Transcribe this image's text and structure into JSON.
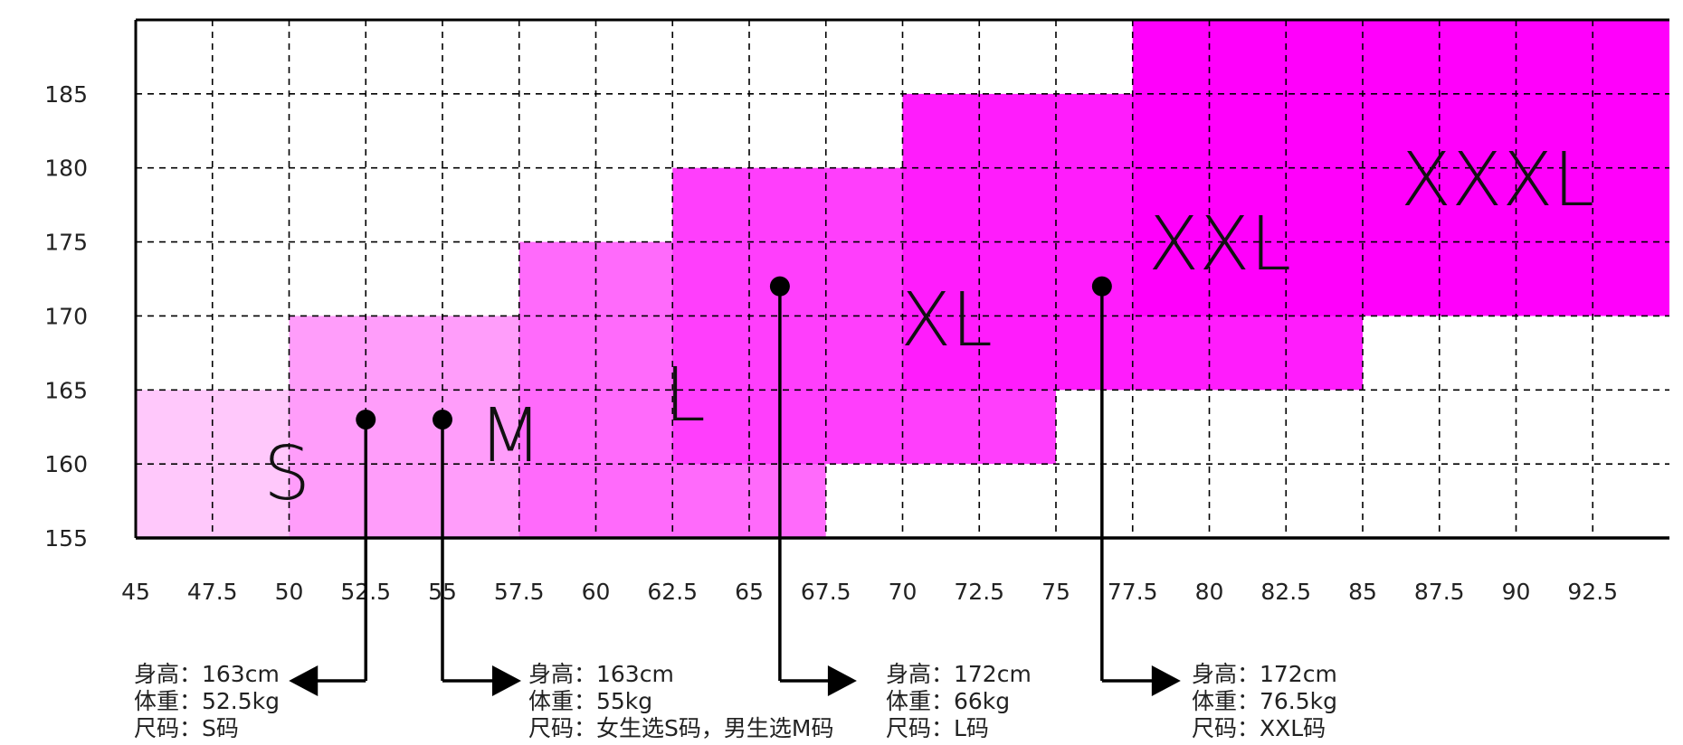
{
  "chart_data": {
    "type": "area",
    "title": "",
    "xlabel": "",
    "ylabel": "",
    "xlim": [
      45,
      95
    ],
    "ylim": [
      155,
      190
    ],
    "x_ticks": [
      "45",
      "47.5",
      "50",
      "52.5",
      "55",
      "57.5",
      "60",
      "62.5",
      "65",
      "67.5",
      "70",
      "72.5",
      "75",
      "77.5",
      "80",
      "82.5",
      "85",
      "87.5",
      "90",
      "92.5"
    ],
    "y_ticks": [
      "155",
      "160",
      "165",
      "170",
      "175",
      "180",
      "185"
    ],
    "grid": true,
    "regions": [
      {
        "label": "S",
        "x": [
          45,
          55
        ],
        "y": [
          155,
          165
        ],
        "color": "#ffc8fb"
      },
      {
        "label": "M",
        "x": [
          50,
          60
        ],
        "y": [
          155,
          170
        ],
        "color": "#ff9dfa"
      },
      {
        "label": "L",
        "x": [
          57.5,
          67.5
        ],
        "y": [
          155,
          175
        ],
        "color": "#ff6afb"
      },
      {
        "label": "XL",
        "x": [
          62.5,
          75
        ],
        "y": [
          160,
          180
        ],
        "color": "#ff3efc"
      },
      {
        "label": "XXL",
        "x": [
          70,
          85
        ],
        "y": [
          165,
          185
        ],
        "color": "#ff1cfc"
      },
      {
        "label": "XXXL",
        "x": [
          77.5,
          95
        ],
        "y": [
          170,
          190
        ],
        "color": "#ff00fb"
      }
    ],
    "points": [
      {
        "x": 52.5,
        "y": 163,
        "lines": [
          "身高：163cm",
          "体重：52.5kg",
          "尺码：S码"
        ]
      },
      {
        "x": 55,
        "y": 163,
        "lines": [
          "身高：163cm",
          "体重：55kg",
          "尺码：女生选S码，男生选M码"
        ]
      },
      {
        "x": 66,
        "y": 172,
        "lines": [
          "身高：172cm",
          "体重：66kg",
          "尺码：L码"
        ]
      },
      {
        "x": 76.5,
        "y": 172,
        "lines": [
          "身高：172cm",
          "体重：76.5kg",
          "尺码：XXL码"
        ]
      }
    ]
  },
  "colors": {
    "axis": "#000000",
    "grid": "#000000",
    "dot": "#000000"
  }
}
